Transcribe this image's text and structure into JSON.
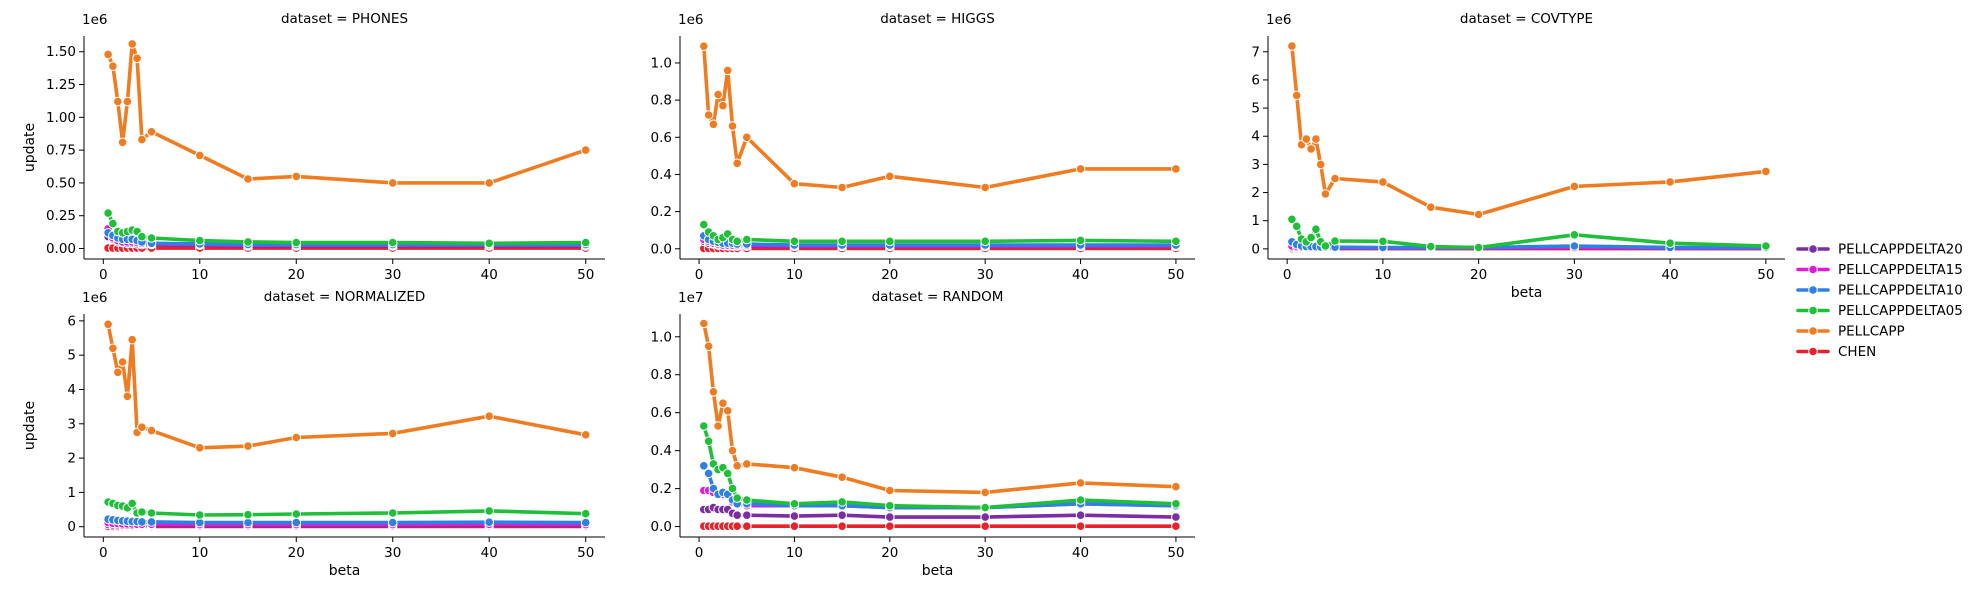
{
  "chart_data": [
    {
      "type": "line",
      "title": "dataset = PHONES",
      "xlabel": "",
      "ylabel": "update",
      "offset_label": "1e6",
      "xlim": [
        -2.0,
        52.0
      ],
      "ylim": [
        -0.08,
        1.62
      ],
      "xticks": [
        0,
        10,
        20,
        30,
        40,
        50
      ],
      "yticks": [
        0.0,
        0.25,
        0.5,
        0.75,
        1.0,
        1.25,
        1.5
      ],
      "ytick_labels": [
        "0.00",
        "0.25",
        "0.50",
        "0.75",
        "1.00",
        "1.25",
        "1.50"
      ],
      "x": [
        0.5,
        1,
        1.5,
        2,
        2.5,
        3,
        3.5,
        4,
        5,
        10,
        15,
        20,
        30,
        40,
        50
      ],
      "series": [
        {
          "name": "CHEN",
          "values": [
            0.003,
            0.003,
            0.003,
            0.003,
            0.003,
            0.003,
            0.003,
            0.003,
            0.003,
            0.003,
            0.003,
            0.003,
            0.003,
            0.003,
            0.003
          ]
        },
        {
          "name": "PELLCAPP",
          "values": [
            1.48,
            1.39,
            1.12,
            0.81,
            1.12,
            1.56,
            1.45,
            0.83,
            0.89,
            0.71,
            0.53,
            0.55,
            0.5,
            0.5,
            0.75
          ]
        },
        {
          "name": "PELLCAPPDELTA05",
          "values": [
            0.27,
            0.19,
            0.13,
            0.12,
            0.13,
            0.14,
            0.13,
            0.09,
            0.08,
            0.06,
            0.05,
            0.045,
            0.045,
            0.04,
            0.045
          ]
        },
        {
          "name": "PELLCAPPDELTA10",
          "values": [
            0.12,
            0.1,
            0.08,
            0.07,
            0.07,
            0.07,
            0.06,
            0.05,
            0.04,
            0.035,
            0.03,
            0.03,
            0.03,
            0.03,
            0.03
          ]
        },
        {
          "name": "PELLCAPPDELTA15",
          "values": [
            0.15,
            0.08,
            0.06,
            0.05,
            0.05,
            0.05,
            0.045,
            0.04,
            0.035,
            0.03,
            0.025,
            0.025,
            0.025,
            0.025,
            0.025
          ]
        },
        {
          "name": "PELLCAPPDELTA20",
          "values": [
            0.09,
            0.07,
            0.05,
            0.045,
            0.04,
            0.04,
            0.035,
            0.03,
            0.03,
            0.025,
            0.02,
            0.02,
            0.02,
            0.02,
            0.02
          ]
        }
      ]
    },
    {
      "type": "line",
      "title": "dataset = HIGGS",
      "xlabel": "",
      "ylabel": "",
      "offset_label": "1e6",
      "xlim": [
        -2.0,
        52.0
      ],
      "ylim": [
        -0.055,
        1.145
      ],
      "xticks": [
        0,
        10,
        20,
        30,
        40,
        50
      ],
      "yticks": [
        0.0,
        0.2,
        0.4,
        0.6,
        0.8,
        1.0
      ],
      "ytick_labels": [
        "0.0",
        "0.2",
        "0.4",
        "0.6",
        "0.8",
        "1.0"
      ],
      "x": [
        0.5,
        1,
        1.5,
        2,
        2.5,
        3,
        3.5,
        4,
        5,
        10,
        15,
        20,
        30,
        40,
        50
      ],
      "series": [
        {
          "name": "CHEN",
          "values": [
            0.002,
            0.002,
            0.002,
            0.002,
            0.002,
            0.002,
            0.002,
            0.002,
            0.002,
            0.002,
            0.002,
            0.002,
            0.002,
            0.002,
            0.002
          ]
        },
        {
          "name": "PELLCAPP",
          "values": [
            1.09,
            0.72,
            0.67,
            0.83,
            0.77,
            0.96,
            0.66,
            0.46,
            0.6,
            0.35,
            0.33,
            0.39,
            0.33,
            0.43,
            0.43
          ]
        },
        {
          "name": "PELLCAPPDELTA05",
          "values": [
            0.13,
            0.09,
            0.07,
            0.05,
            0.06,
            0.08,
            0.05,
            0.04,
            0.05,
            0.04,
            0.04,
            0.04,
            0.04,
            0.045,
            0.04
          ]
        },
        {
          "name": "PELLCAPPDELTA10",
          "values": [
            0.07,
            0.05,
            0.04,
            0.035,
            0.03,
            0.03,
            0.03,
            0.025,
            0.025,
            0.02,
            0.02,
            0.02,
            0.02,
            0.02,
            0.02
          ]
        },
        {
          "name": "PELLCAPPDELTA15",
          "values": [
            0.05,
            0.04,
            0.03,
            0.025,
            0.02,
            0.02,
            0.02,
            0.018,
            0.018,
            0.015,
            0.015,
            0.015,
            0.015,
            0.015,
            0.015
          ]
        },
        {
          "name": "PELLCAPPDELTA20",
          "values": [
            0.04,
            0.03,
            0.025,
            0.02,
            0.018,
            0.016,
            0.015,
            0.014,
            0.014,
            0.012,
            0.012,
            0.012,
            0.012,
            0.012,
            0.012
          ]
        }
      ]
    },
    {
      "type": "line",
      "title": "dataset = COVTYPE",
      "xlabel": "beta",
      "ylabel": "",
      "offset_label": "1e6",
      "xlim": [
        -2.0,
        52.0
      ],
      "ylim": [
        -0.36,
        7.56
      ],
      "xticks": [
        0,
        10,
        20,
        30,
        40,
        50
      ],
      "yticks": [
        0,
        1,
        2,
        3,
        4,
        5,
        6,
        7
      ],
      "ytick_labels": [
        "0",
        "1",
        "2",
        "3",
        "4",
        "5",
        "6",
        "7"
      ],
      "x": [
        0.5,
        1,
        1.5,
        2,
        2.5,
        3,
        3.5,
        4,
        5,
        10,
        15,
        20,
        30,
        40,
        50
      ],
      "series": [
        {
          "name": "CHEN",
          "values": [
            0.01,
            0.01,
            0.01,
            0.01,
            0.01,
            0.01,
            0.01,
            0.01,
            0.01,
            0.01,
            0.01,
            0.01,
            0.01,
            0.01,
            0.01
          ]
        },
        {
          "name": "PELLCAPP",
          "values": [
            7.2,
            5.45,
            3.7,
            3.9,
            3.55,
            3.9,
            3.0,
            1.95,
            2.5,
            2.37,
            1.48,
            1.22,
            2.22,
            2.38,
            2.75
          ]
        },
        {
          "name": "PELLCAPPDELTA05",
          "values": [
            1.05,
            0.8,
            0.35,
            0.25,
            0.4,
            0.7,
            0.25,
            0.1,
            0.28,
            0.27,
            0.08,
            0.05,
            0.5,
            0.2,
            0.1
          ]
        },
        {
          "name": "PELLCAPPDELTA10",
          "values": [
            0.25,
            0.15,
            0.1,
            0.08,
            0.08,
            0.08,
            0.07,
            0.06,
            0.06,
            0.05,
            0.05,
            0.05,
            0.1,
            0.05,
            0.05
          ]
        },
        {
          "name": "PELLCAPPDELTA15",
          "values": [
            0.1,
            0.08,
            0.06,
            0.05,
            0.05,
            0.05,
            0.04,
            0.04,
            0.04,
            0.03,
            0.03,
            0.03,
            0.05,
            0.03,
            0.03
          ]
        },
        {
          "name": "PELLCAPPDELTA20",
          "values": [
            0.06,
            0.05,
            0.04,
            0.035,
            0.035,
            0.035,
            0.03,
            0.03,
            0.03,
            0.02,
            0.02,
            0.02,
            0.04,
            0.02,
            0.02
          ]
        }
      ]
    },
    {
      "type": "line",
      "title": "dataset = NORMALIZED",
      "xlabel": "beta",
      "ylabel": "update",
      "offset_label": "1e6",
      "xlim": [
        -2.0,
        52.0
      ],
      "ylim": [
        -0.3,
        6.2
      ],
      "xticks": [
        0,
        10,
        20,
        30,
        40,
        50
      ],
      "yticks": [
        0,
        1,
        2,
        3,
        4,
        5,
        6
      ],
      "ytick_labels": [
        "0",
        "1",
        "2",
        "3",
        "4",
        "5",
        "6"
      ],
      "x": [
        0.5,
        1,
        1.5,
        2,
        2.5,
        3,
        3.5,
        4,
        5,
        10,
        15,
        20,
        30,
        40,
        50
      ],
      "series": [
        {
          "name": "CHEN",
          "values": [
            0.01,
            0.01,
            0.01,
            0.01,
            0.01,
            0.01,
            0.01,
            0.01,
            0.01,
            0.01,
            0.01,
            0.01,
            0.01,
            0.01,
            0.01
          ]
        },
        {
          "name": "PELLCAPP",
          "values": [
            5.9,
            5.2,
            4.5,
            4.8,
            3.8,
            5.45,
            2.75,
            2.9,
            2.8,
            2.3,
            2.35,
            2.6,
            2.72,
            3.22,
            2.68
          ]
        },
        {
          "name": "PELLCAPPDELTA05",
          "values": [
            0.72,
            0.68,
            0.62,
            0.6,
            0.55,
            0.68,
            0.4,
            0.43,
            0.4,
            0.34,
            0.35,
            0.37,
            0.4,
            0.46,
            0.38
          ]
        },
        {
          "name": "PELLCAPPDELTA10",
          "values": [
            0.22,
            0.2,
            0.18,
            0.17,
            0.16,
            0.15,
            0.15,
            0.14,
            0.14,
            0.12,
            0.12,
            0.12,
            0.12,
            0.13,
            0.12
          ]
        },
        {
          "name": "PELLCAPPDELTA15",
          "values": [
            0.12,
            0.1,
            0.09,
            0.08,
            0.08,
            0.08,
            0.07,
            0.07,
            0.07,
            0.06,
            0.06,
            0.06,
            0.06,
            0.07,
            0.06
          ]
        },
        {
          "name": "PELLCAPPDELTA20",
          "values": [
            0.06,
            0.05,
            0.05,
            0.04,
            0.04,
            0.04,
            0.04,
            0.04,
            0.04,
            0.03,
            0.03,
            0.03,
            0.03,
            0.04,
            0.03
          ]
        }
      ]
    },
    {
      "type": "line",
      "title": "dataset = RANDOM",
      "xlabel": "beta",
      "ylabel": "",
      "offset_label": "1e7",
      "xlim": [
        -2.0,
        52.0
      ],
      "ylim": [
        -0.055,
        1.12
      ],
      "xticks": [
        0,
        10,
        20,
        30,
        40,
        50
      ],
      "yticks": [
        0.0,
        0.2,
        0.4,
        0.6,
        0.8,
        1.0
      ],
      "ytick_labels": [
        "0.0",
        "0.2",
        "0.4",
        "0.6",
        "0.8",
        "1.0"
      ],
      "x": [
        0.5,
        1,
        1.5,
        2,
        2.5,
        3,
        3.5,
        4,
        5,
        10,
        15,
        20,
        30,
        40,
        50
      ],
      "series": [
        {
          "name": "CHEN",
          "values": [
            0.002,
            0.002,
            0.002,
            0.002,
            0.002,
            0.002,
            0.002,
            0.002,
            0.002,
            0.002,
            0.002,
            0.002,
            0.002,
            0.002,
            0.002
          ]
        },
        {
          "name": "PELLCAPP",
          "values": [
            1.07,
            0.95,
            0.71,
            0.53,
            0.65,
            0.61,
            0.4,
            0.32,
            0.33,
            0.31,
            0.26,
            0.19,
            0.18,
            0.23,
            0.21
          ]
        },
        {
          "name": "PELLCAPPDELTA05",
          "values": [
            0.53,
            0.45,
            0.33,
            0.3,
            0.31,
            0.28,
            0.2,
            0.15,
            0.14,
            0.12,
            0.13,
            0.11,
            0.1,
            0.14,
            0.12
          ]
        },
        {
          "name": "PELLCAPPDELTA10",
          "values": [
            0.32,
            0.28,
            0.2,
            0.17,
            0.18,
            0.17,
            0.14,
            0.12,
            0.12,
            0.11,
            0.11,
            0.1,
            0.1,
            0.12,
            0.11
          ]
        },
        {
          "name": "PELLCAPPDELTA15",
          "values": [
            0.19,
            0.19,
            0.18,
            0.17,
            0.17,
            0.17,
            0.13,
            0.12,
            0.11,
            0.11,
            0.11,
            0.1,
            0.1,
            0.12,
            0.11
          ]
        },
        {
          "name": "PELLCAPPDELTA20",
          "values": [
            0.09,
            0.09,
            0.1,
            0.09,
            0.09,
            0.09,
            0.07,
            0.06,
            0.06,
            0.055,
            0.06,
            0.05,
            0.05,
            0.06,
            0.05
          ]
        }
      ]
    }
  ],
  "legend": {
    "placement": "right",
    "entries": [
      "PELLCAPPDELTA20",
      "PELLCAPPDELTA15",
      "PELLCAPPDELTA10",
      "PELLCAPPDELTA05",
      "PELLCAPP",
      "CHEN"
    ]
  },
  "colors": {
    "CHEN": "#e8212a",
    "PELLCAPP": "#f07c22",
    "PELLCAPPDELTA05": "#1fbf3a",
    "PELLCAPPDELTA10": "#2f80e5",
    "PELLCAPPDELTA15": "#e11ad9",
    "PELLCAPPDELTA20": "#7c2da3"
  }
}
